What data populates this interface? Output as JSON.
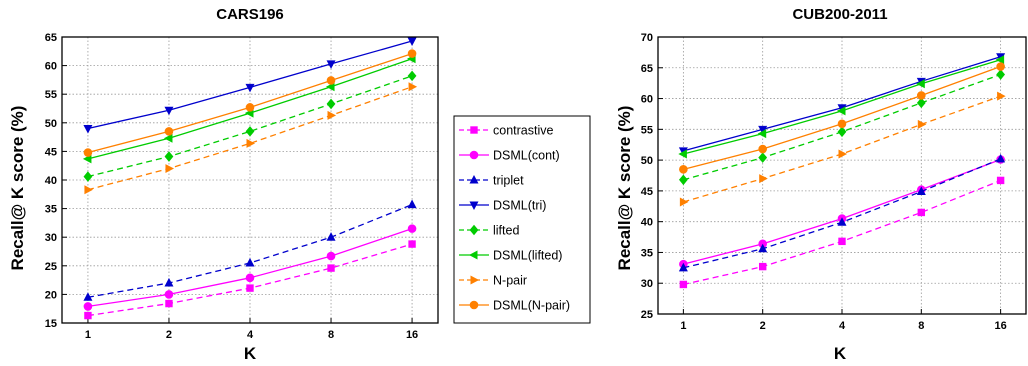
{
  "chart_data": [
    {
      "type": "line",
      "title": "CARS196",
      "xlabel": "K",
      "ylabel": "Recall@ K score (%)",
      "x": [
        1,
        2,
        4,
        8,
        16
      ],
      "x_ticks": [
        "1",
        "2",
        "4",
        "8",
        "16"
      ],
      "x_scale": "log2",
      "ylim": [
        15,
        65
      ],
      "y_ticks": [
        "15",
        "20",
        "25",
        "30",
        "35",
        "40",
        "45",
        "50",
        "55",
        "60",
        "65"
      ],
      "grid": true,
      "series": [
        {
          "name": "contrastive",
          "color": "#ff00ff",
          "marker": "square",
          "dashed": true,
          "values": [
            16.3,
            18.4,
            21.1,
            24.6,
            28.8
          ]
        },
        {
          "name": "DSML(cont)",
          "color": "#ff00ff",
          "marker": "circle",
          "dashed": false,
          "values": [
            17.9,
            20.0,
            22.9,
            26.7,
            31.5
          ]
        },
        {
          "name": "triplet",
          "color": "#0000cc",
          "marker": "triangle-up",
          "dashed": true,
          "values": [
            19.5,
            22.0,
            25.5,
            30.0,
            35.7
          ]
        },
        {
          "name": "DSML(tri)",
          "color": "#0000cc",
          "marker": "triangle-down",
          "dashed": false,
          "values": [
            49.0,
            52.2,
            56.2,
            60.3,
            64.3
          ]
        },
        {
          "name": "lifted",
          "color": "#00cc00",
          "marker": "diamond",
          "dashed": true,
          "values": [
            40.6,
            44.1,
            48.5,
            53.3,
            58.2
          ]
        },
        {
          "name": "DSML(lifted)",
          "color": "#00cc00",
          "marker": "triangle-left",
          "dashed": false,
          "values": [
            43.7,
            47.3,
            51.7,
            56.3,
            61.2
          ]
        },
        {
          "name": "N-pair",
          "color": "#ff8000",
          "marker": "triangle-right",
          "dashed": true,
          "values": [
            38.3,
            42.0,
            46.4,
            51.3,
            56.3
          ]
        },
        {
          "name": "DSML(N-pair)",
          "color": "#ff8000",
          "marker": "circle",
          "dashed": false,
          "values": [
            44.8,
            48.5,
            52.7,
            57.4,
            62.1
          ]
        }
      ]
    },
    {
      "type": "line",
      "title": "CUB200-2011",
      "xlabel": "K",
      "ylabel": "Recall@ K score (%)",
      "x": [
        1,
        2,
        4,
        8,
        16
      ],
      "x_ticks": [
        "1",
        "2",
        "4",
        "8",
        "16"
      ],
      "x_scale": "log2",
      "ylim": [
        25,
        70
      ],
      "y_ticks": [
        "25",
        "30",
        "35",
        "40",
        "45",
        "50",
        "55",
        "60",
        "65",
        "70"
      ],
      "grid": true,
      "series": [
        {
          "name": "contrastive",
          "color": "#ff00ff",
          "marker": "square",
          "dashed": true,
          "values": [
            29.8,
            32.7,
            36.8,
            41.5,
            46.7
          ]
        },
        {
          "name": "DSML(cont)",
          "color": "#ff00ff",
          "marker": "circle",
          "dashed": false,
          "values": [
            33.1,
            36.4,
            40.5,
            45.2,
            50.1
          ]
        },
        {
          "name": "triplet",
          "color": "#0000cc",
          "marker": "triangle-up",
          "dashed": true,
          "values": [
            32.5,
            35.6,
            39.9,
            44.9,
            50.2
          ]
        },
        {
          "name": "DSML(tri)",
          "color": "#0000cc",
          "marker": "triangle-down",
          "dashed": false,
          "values": [
            51.5,
            55.0,
            58.5,
            62.8,
            66.8
          ]
        },
        {
          "name": "lifted",
          "color": "#00cc00",
          "marker": "diamond",
          "dashed": true,
          "values": [
            46.8,
            50.4,
            54.6,
            59.3,
            63.9
          ]
        },
        {
          "name": "DSML(lifted)",
          "color": "#00cc00",
          "marker": "triangle-left",
          "dashed": false,
          "values": [
            51.0,
            54.3,
            58.0,
            62.4,
            66.3
          ]
        },
        {
          "name": "N-pair",
          "color": "#ff8000",
          "marker": "triangle-right",
          "dashed": true,
          "values": [
            43.2,
            47.0,
            51.0,
            55.8,
            60.4
          ]
        },
        {
          "name": "DSML(N-pair)",
          "color": "#ff8000",
          "marker": "circle",
          "dashed": false,
          "values": [
            48.5,
            51.8,
            55.9,
            60.5,
            65.2
          ]
        }
      ]
    }
  ],
  "legend": {
    "placement": "center, between the two plots",
    "items": [
      "contrastive",
      "DSML(cont)",
      "triplet",
      "DSML(tri)",
      "lifted",
      "DSML(lifted)",
      "N-pair",
      "DSML(N-pair)"
    ]
  }
}
